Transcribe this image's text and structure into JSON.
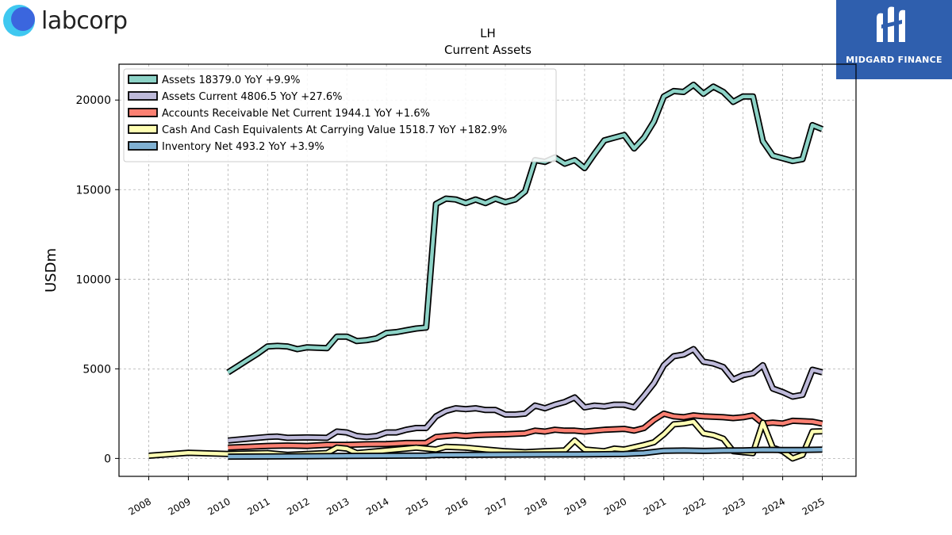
{
  "branding": {
    "left_logo_text": "labcorp",
    "right_logo_text": "MIDGARD FINANCE"
  },
  "chart_data": {
    "type": "line",
    "title": "LH",
    "subtitle": "Current  Assets",
    "ylabel": "USDm",
    "xlabel": "",
    "ylim": [
      -1000,
      22000
    ],
    "xlim": [
      2007.25,
      2025.85
    ],
    "y_ticks": [
      0,
      5000,
      10000,
      15000,
      20000
    ],
    "x_ticks": [
      "2008",
      "2009",
      "2010",
      "2011",
      "2012",
      "2013",
      "2014",
      "2015",
      "2016",
      "2017",
      "2018",
      "2019",
      "2020",
      "2021",
      "2022",
      "2023",
      "2024",
      "2025"
    ],
    "grid": true,
    "legend_placement": "top-left",
    "series": [
      {
        "name": "Assets",
        "legend": "Assets  18379.0 YoY +9.9%",
        "color": "#8dd3c7",
        "points": [
          [
            2010.0,
            4800
          ],
          [
            2010.25,
            5150
          ],
          [
            2010.5,
            5500
          ],
          [
            2010.75,
            5850
          ],
          [
            2011.0,
            6250
          ],
          [
            2011.25,
            6280
          ],
          [
            2011.5,
            6250
          ],
          [
            2011.75,
            6100
          ],
          [
            2012.0,
            6200
          ],
          [
            2012.25,
            6180
          ],
          [
            2012.5,
            6150
          ],
          [
            2012.75,
            6800
          ],
          [
            2013.0,
            6800
          ],
          [
            2013.25,
            6550
          ],
          [
            2013.5,
            6600
          ],
          [
            2013.75,
            6700
          ],
          [
            2014.0,
            7000
          ],
          [
            2014.25,
            7050
          ],
          [
            2014.5,
            7150
          ],
          [
            2014.75,
            7250
          ],
          [
            2015.0,
            7300
          ],
          [
            2015.25,
            14200
          ],
          [
            2015.5,
            14500
          ],
          [
            2015.75,
            14450
          ],
          [
            2016.0,
            14250
          ],
          [
            2016.25,
            14450
          ],
          [
            2016.5,
            14250
          ],
          [
            2016.75,
            14500
          ],
          [
            2017.0,
            14300
          ],
          [
            2017.25,
            14450
          ],
          [
            2017.5,
            14900
          ],
          [
            2017.75,
            16650
          ],
          [
            2018.0,
            16550
          ],
          [
            2018.25,
            16800
          ],
          [
            2018.5,
            16450
          ],
          [
            2018.75,
            16650
          ],
          [
            2019.0,
            16200
          ],
          [
            2019.25,
            17000
          ],
          [
            2019.5,
            17750
          ],
          [
            2019.75,
            17900
          ],
          [
            2020.0,
            18050
          ],
          [
            2020.25,
            17300
          ],
          [
            2020.5,
            17900
          ],
          [
            2020.75,
            18800
          ],
          [
            2021.0,
            20200
          ],
          [
            2021.25,
            20500
          ],
          [
            2021.5,
            20450
          ],
          [
            2021.75,
            20850
          ],
          [
            2022.0,
            20350
          ],
          [
            2022.25,
            20750
          ],
          [
            2022.5,
            20450
          ],
          [
            2022.75,
            19900
          ],
          [
            2023.0,
            20200
          ],
          [
            2023.25,
            20200
          ],
          [
            2023.5,
            17700
          ],
          [
            2023.75,
            16900
          ],
          [
            2024.0,
            16750
          ],
          [
            2024.25,
            16600
          ],
          [
            2024.5,
            16700
          ],
          [
            2024.75,
            18600
          ],
          [
            2025.0,
            18379
          ]
        ]
      },
      {
        "name": "Assets Current",
        "legend": "Assets Current  4806.5 YoY +27.6%",
        "color": "#bebada",
        "points": [
          [
            2010.0,
            1000
          ],
          [
            2010.5,
            1100
          ],
          [
            2011.0,
            1200
          ],
          [
            2011.25,
            1220
          ],
          [
            2011.5,
            1150
          ],
          [
            2012.0,
            1170
          ],
          [
            2012.5,
            1150
          ],
          [
            2012.75,
            1500
          ],
          [
            2013.0,
            1450
          ],
          [
            2013.25,
            1250
          ],
          [
            2013.5,
            1200
          ],
          [
            2013.75,
            1250
          ],
          [
            2014.0,
            1450
          ],
          [
            2014.25,
            1450
          ],
          [
            2014.5,
            1600
          ],
          [
            2014.75,
            1700
          ],
          [
            2015.0,
            1700
          ],
          [
            2015.25,
            2350
          ],
          [
            2015.5,
            2650
          ],
          [
            2015.75,
            2800
          ],
          [
            2016.0,
            2750
          ],
          [
            2016.25,
            2800
          ],
          [
            2016.5,
            2700
          ],
          [
            2016.75,
            2700
          ],
          [
            2017.0,
            2450
          ],
          [
            2017.25,
            2450
          ],
          [
            2017.5,
            2500
          ],
          [
            2017.75,
            2950
          ],
          [
            2018.0,
            2800
          ],
          [
            2018.25,
            3000
          ],
          [
            2018.5,
            3150
          ],
          [
            2018.75,
            3400
          ],
          [
            2019.0,
            2850
          ],
          [
            2019.25,
            2950
          ],
          [
            2019.5,
            2900
          ],
          [
            2019.75,
            3000
          ],
          [
            2020.0,
            3000
          ],
          [
            2020.25,
            2850
          ],
          [
            2020.5,
            3500
          ],
          [
            2020.75,
            4200
          ],
          [
            2021.0,
            5200
          ],
          [
            2021.25,
            5700
          ],
          [
            2021.5,
            5800
          ],
          [
            2021.75,
            6100
          ],
          [
            2022.0,
            5400
          ],
          [
            2022.25,
            5300
          ],
          [
            2022.5,
            5100
          ],
          [
            2022.75,
            4400
          ],
          [
            2023.0,
            4650
          ],
          [
            2023.25,
            4750
          ],
          [
            2023.5,
            5200
          ],
          [
            2023.75,
            3900
          ],
          [
            2024.0,
            3700
          ],
          [
            2024.25,
            3450
          ],
          [
            2024.5,
            3550
          ],
          [
            2024.75,
            4950
          ],
          [
            2025.0,
            4806.5
          ]
        ]
      },
      {
        "name": "Accounts Receivable Net Current",
        "legend": "Accounts Receivable Net Current  1944.1 YoY +1.6%",
        "color": "#fb8072",
        "points": [
          [
            2010.0,
            600
          ],
          [
            2010.5,
            650
          ],
          [
            2011.0,
            700
          ],
          [
            2011.5,
            720
          ],
          [
            2012.0,
            700
          ],
          [
            2012.5,
            760
          ],
          [
            2013.0,
            760
          ],
          [
            2013.5,
            790
          ],
          [
            2014.0,
            800
          ],
          [
            2014.5,
            860
          ],
          [
            2015.0,
            870
          ],
          [
            2015.25,
            1200
          ],
          [
            2015.5,
            1250
          ],
          [
            2015.75,
            1300
          ],
          [
            2016.0,
            1250
          ],
          [
            2016.25,
            1300
          ],
          [
            2016.5,
            1320
          ],
          [
            2017.0,
            1350
          ],
          [
            2017.5,
            1400
          ],
          [
            2017.75,
            1550
          ],
          [
            2018.0,
            1500
          ],
          [
            2018.25,
            1600
          ],
          [
            2018.5,
            1550
          ],
          [
            2018.75,
            1550
          ],
          [
            2019.0,
            1500
          ],
          [
            2019.5,
            1600
          ],
          [
            2020.0,
            1650
          ],
          [
            2020.25,
            1550
          ],
          [
            2020.5,
            1700
          ],
          [
            2020.75,
            2150
          ],
          [
            2021.0,
            2500
          ],
          [
            2021.25,
            2350
          ],
          [
            2021.5,
            2300
          ],
          [
            2021.75,
            2400
          ],
          [
            2022.0,
            2350
          ],
          [
            2022.5,
            2300
          ],
          [
            2022.75,
            2250
          ],
          [
            2023.0,
            2300
          ],
          [
            2023.25,
            2400
          ],
          [
            2023.5,
            1950
          ],
          [
            2023.75,
            2000
          ],
          [
            2024.0,
            1950
          ],
          [
            2024.25,
            2100
          ],
          [
            2024.75,
            2050
          ],
          [
            2025.0,
            1944.1
          ]
        ]
      },
      {
        "name": "Cash And Cash Equivalents At Carrying Value",
        "legend": "Cash And Cash Equivalents At Carrying Value  1518.7 YoY +182.9%",
        "color": "#ffffb3",
        "points": [
          [
            2008.0,
            150
          ],
          [
            2009.0,
            320
          ],
          [
            2010.0,
            250
          ],
          [
            2010.5,
            280
          ],
          [
            2011.0,
            300
          ],
          [
            2011.5,
            200
          ],
          [
            2012.0,
            250
          ],
          [
            2012.5,
            300
          ],
          [
            2012.75,
            600
          ],
          [
            2013.0,
            550
          ],
          [
            2013.25,
            300
          ],
          [
            2013.5,
            350
          ],
          [
            2014.0,
            450
          ],
          [
            2014.5,
            550
          ],
          [
            2014.75,
            600
          ],
          [
            2015.0,
            550
          ],
          [
            2015.25,
            500
          ],
          [
            2015.5,
            650
          ],
          [
            2016.0,
            600
          ],
          [
            2016.5,
            500
          ],
          [
            2017.0,
            400
          ],
          [
            2017.5,
            350
          ],
          [
            2018.0,
            400
          ],
          [
            2018.5,
            450
          ],
          [
            2018.75,
            1000
          ],
          [
            2019.0,
            500
          ],
          [
            2019.5,
            400
          ],
          [
            2019.75,
            550
          ],
          [
            2020.0,
            500
          ],
          [
            2020.5,
            750
          ],
          [
            2020.75,
            900
          ],
          [
            2021.0,
            1350
          ],
          [
            2021.25,
            1900
          ],
          [
            2021.5,
            1950
          ],
          [
            2021.75,
            2050
          ],
          [
            2022.0,
            1400
          ],
          [
            2022.25,
            1300
          ],
          [
            2022.5,
            1100
          ],
          [
            2022.75,
            400
          ],
          [
            2023.0,
            350
          ],
          [
            2023.25,
            300
          ],
          [
            2023.5,
            2000
          ],
          [
            2023.75,
            600
          ],
          [
            2024.0,
            400
          ],
          [
            2024.25,
            0
          ],
          [
            2024.5,
            200
          ],
          [
            2024.75,
            1500
          ],
          [
            2025.0,
            1518.7
          ]
        ]
      },
      {
        "name": "Inventory Net",
        "legend": "Inventory Net  493.2 YoY +3.9%",
        "color": "#80b1d3",
        "points": [
          [
            2010.0,
            100
          ],
          [
            2011.0,
            110
          ],
          [
            2012.0,
            125
          ],
          [
            2013.0,
            140
          ],
          [
            2014.0,
            150
          ],
          [
            2015.0,
            160
          ],
          [
            2015.25,
            190
          ],
          [
            2016.0,
            200
          ],
          [
            2017.0,
            210
          ],
          [
            2018.0,
            220
          ],
          [
            2019.0,
            230
          ],
          [
            2020.0,
            250
          ],
          [
            2020.5,
            300
          ],
          [
            2021.0,
            430
          ],
          [
            2021.5,
            440
          ],
          [
            2022.0,
            420
          ],
          [
            2022.5,
            440
          ],
          [
            2023.0,
            450
          ],
          [
            2023.5,
            480
          ],
          [
            2024.0,
            470
          ],
          [
            2024.5,
            475
          ],
          [
            2025.0,
            493.2
          ]
        ]
      }
    ]
  }
}
